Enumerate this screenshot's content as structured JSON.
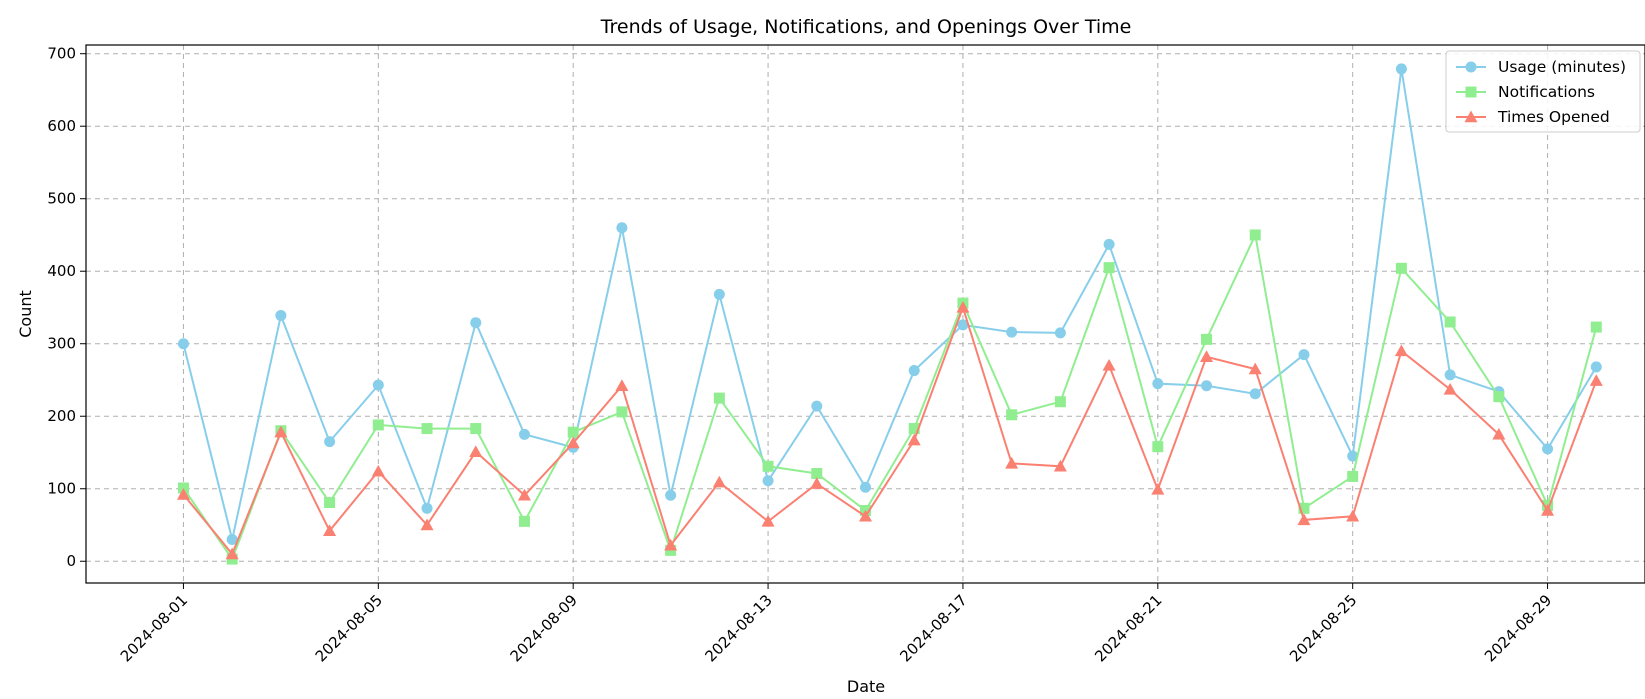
{
  "chart_data": {
    "type": "line",
    "title": "Trends of Usage, Notifications, and Openings Over Time",
    "xlabel": "Date",
    "ylabel": "Count",
    "ylim": [
      -30,
      712
    ],
    "xlim": [
      "2024-07-30",
      "2024-08-31"
    ],
    "grid": true,
    "legend_position": "top-right",
    "x": [
      "2024-08-01",
      "2024-08-02",
      "2024-08-03",
      "2024-08-04",
      "2024-08-05",
      "2024-08-06",
      "2024-08-07",
      "2024-08-08",
      "2024-08-09",
      "2024-08-10",
      "2024-08-11",
      "2024-08-12",
      "2024-08-13",
      "2024-08-14",
      "2024-08-15",
      "2024-08-16",
      "2024-08-17",
      "2024-08-18",
      "2024-08-19",
      "2024-08-20",
      "2024-08-21",
      "2024-08-22",
      "2024-08-23",
      "2024-08-24",
      "2024-08-25",
      "2024-08-26",
      "2024-08-27",
      "2024-08-28",
      "2024-08-29",
      "2024-08-30"
    ],
    "x_ticks": [
      "2024-08-01",
      "2024-08-05",
      "2024-08-09",
      "2024-08-13",
      "2024-08-17",
      "2024-08-21",
      "2024-08-25",
      "2024-08-29"
    ],
    "y_ticks": [
      0,
      100,
      200,
      300,
      400,
      500,
      600,
      700
    ],
    "series": [
      {
        "name": "Usage (minutes)",
        "color": "#87ceeb",
        "marker": "circle",
        "values": [
          300,
          30,
          339,
          165,
          243,
          73,
          329,
          175,
          157,
          460,
          91,
          368,
          111,
          214,
          102,
          263,
          326,
          316,
          315,
          437,
          245,
          242,
          231,
          285,
          145,
          679,
          257,
          234,
          155,
          268
        ]
      },
      {
        "name": "Notifications",
        "color": "#90ee90",
        "marker": "square",
        "values": [
          101,
          3,
          180,
          81,
          188,
          183,
          183,
          55,
          178,
          206,
          15,
          225,
          131,
          121,
          70,
          183,
          356,
          202,
          220,
          405,
          158,
          306,
          450,
          73,
          117,
          404,
          330,
          227,
          77,
          323
        ]
      },
      {
        "name": "Times Opened",
        "color": "#fa8072",
        "marker": "triangle",
        "values": [
          92,
          10,
          178,
          42,
          124,
          50,
          151,
          91,
          163,
          242,
          22,
          109,
          55,
          107,
          62,
          167,
          350,
          135,
          131,
          270,
          99,
          282,
          265,
          57,
          62,
          290,
          237,
          175,
          70,
          249
        ]
      }
    ]
  }
}
